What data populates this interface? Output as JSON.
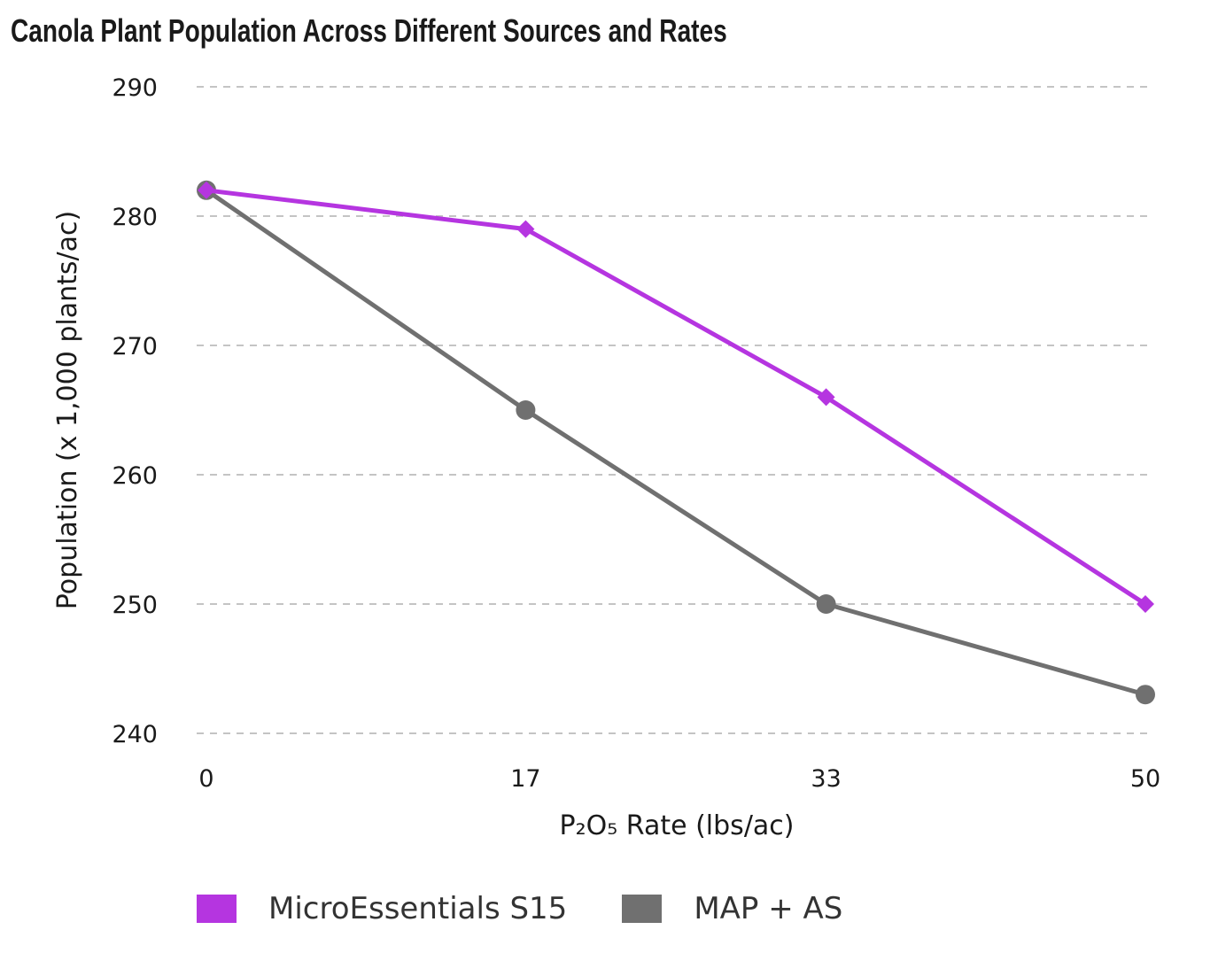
{
  "chart_data": {
    "type": "line",
    "title": "Canola Plant Population Across Different Sources and Rates",
    "xlabel": "P₂O₅ Rate (lbs/ac)",
    "ylabel": "Population (x 1,000 plants/ac)",
    "x": [
      0,
      17,
      33,
      50
    ],
    "x_tick_labels": [
      "0",
      "17",
      "33",
      "50"
    ],
    "y_ticks": [
      240,
      250,
      260,
      270,
      280,
      290
    ],
    "ylim": [
      240,
      290
    ],
    "xlim": [
      0,
      50
    ],
    "grid": "horizontal dashed",
    "legend": "bottom",
    "series": [
      {
        "name": "MicroEssentials S15",
        "values": [
          282,
          279,
          266,
          250
        ],
        "color": "#b535e0",
        "marker": "diamond"
      },
      {
        "name": "MAP + AS",
        "values": [
          282,
          265,
          250,
          243
        ],
        "color": "#707070",
        "marker": "circle"
      }
    ]
  }
}
